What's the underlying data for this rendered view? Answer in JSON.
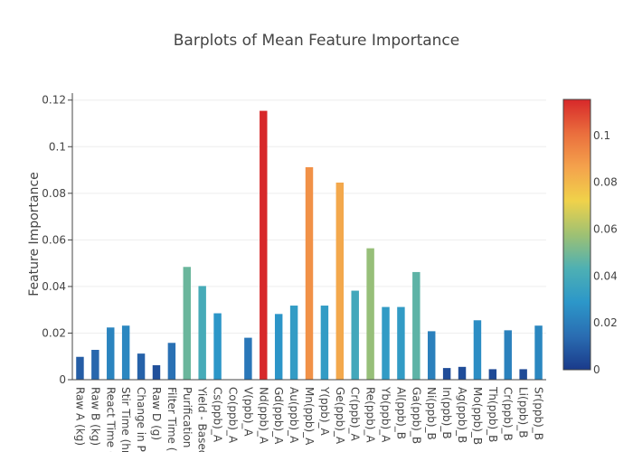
{
  "chart_data": {
    "type": "bar",
    "title": "Barplots of Mean Feature Importance",
    "xlabel": "",
    "ylabel": "Feature Importance",
    "ylim": [
      0,
      0.123
    ],
    "yticks": [
      0,
      0.02,
      0.04,
      0.06,
      0.08,
      0.1,
      0.12
    ],
    "ytick_labels": [
      "0",
      "0.02",
      "0.04",
      "0.06",
      "0.08",
      "0.1",
      "0.12"
    ],
    "grid": true,
    "categories": [
      "Raw A (kg)",
      "Raw B (kg)",
      "React Time (h",
      "Stir Time (hr)",
      "Change in P,",
      "Raw D (g)",
      "Filter Time (h",
      "Purification (l",
      "Yield - Based",
      "Cs(ppb)_A",
      "Co(ppb)_A",
      "V(ppb)_A",
      "Nd(ppb)_A",
      "Gd(ppb)_A",
      "Au(ppb)_A",
      "Mn(ppb)_A",
      "Y(ppb)_A",
      "Ge(ppb)_A",
      "Cr(ppb)_A",
      "Re(ppb)_A",
      "Yb(ppb)_A",
      "Al(ppb)_B",
      "Ga(ppb)_B",
      "Ni(ppb)_B",
      "In(ppb)_B",
      "Ag(ppb)_B",
      "Mo(ppb)_B",
      "Th(ppb)_B",
      "Cr(ppb)_B",
      "Li(ppb)_B",
      "Sr(ppb)_B"
    ],
    "values": [
      0.0098,
      0.0128,
      0.0224,
      0.0232,
      0.0112,
      0.0062,
      0.0158,
      0.0484,
      0.0402,
      0.0285,
      0.0,
      0.018,
      0.1154,
      0.0282,
      0.0318,
      0.0912,
      0.0318,
      0.0846,
      0.0382,
      0.0564,
      0.0312,
      0.0312,
      0.0462,
      0.0208,
      0.005,
      0.0055,
      0.0255,
      0.0045,
      0.0212,
      0.0045,
      0.0232
    ],
    "colorscale": {
      "min": 0,
      "max": 0.1154,
      "stops": [
        "#1a3a8a",
        "#2a6db2",
        "#2c97c9",
        "#4eb0b3",
        "#9ec173",
        "#f0d24a",
        "#f4a24c",
        "#ea6e3d",
        "#d7282a"
      ],
      "ticks": [
        0,
        0.02,
        0.04,
        0.06,
        0.08,
        0.1
      ],
      "tick_labels": [
        "0",
        "0.02",
        "0.04",
        "0.06",
        "0.08",
        "0.1"
      ]
    }
  }
}
